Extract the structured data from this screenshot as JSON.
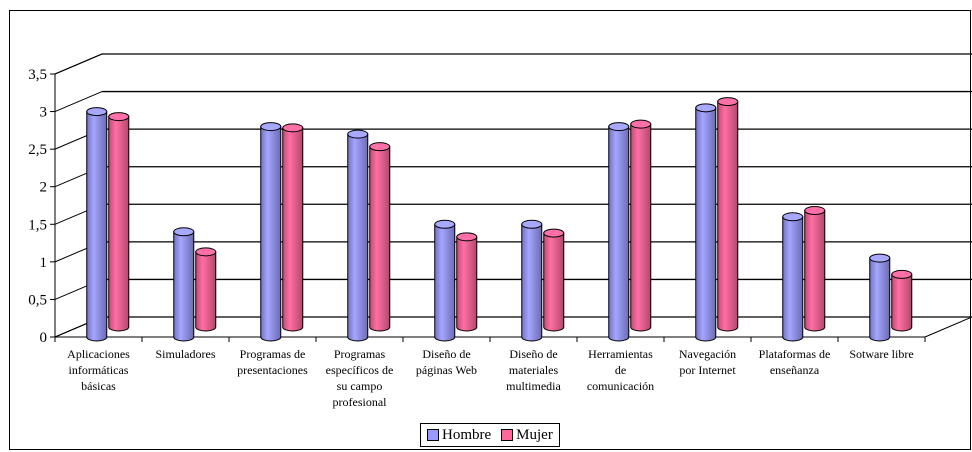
{
  "chart_data": {
    "type": "bar",
    "title": "",
    "xlabel": "",
    "ylabel": "",
    "ylim": [
      0,
      3.5
    ],
    "yticks": [
      "0",
      "0,5",
      "1",
      "1,5",
      "2",
      "2,5",
      "3",
      "3,5"
    ],
    "grid": true,
    "legend_position": "bottom",
    "categories": [
      [
        "Aplicaciones",
        "informáticas",
        "básicas"
      ],
      [
        "Simuladores"
      ],
      [
        "Programas de",
        "presentaciones"
      ],
      [
        "Programas",
        "específicos de",
        "su campo",
        "profesional"
      ],
      [
        "Diseño de",
        "páginas Web"
      ],
      [
        "Diseño de",
        "materiales",
        "multimedia"
      ],
      [
        "Herramientas",
        "de",
        "comunicación"
      ],
      [
        "Navegación",
        "por Internet"
      ],
      [
        "Plataformas de",
        "enseñanza"
      ],
      [
        "Sotware libre"
      ]
    ],
    "series": [
      {
        "name": "Hombre",
        "color": "#9999ff",
        "values": [
          3.0,
          1.4,
          2.8,
          2.7,
          1.5,
          1.5,
          2.8,
          3.05,
          1.6,
          1.05
        ]
      },
      {
        "name": "Mujer",
        "color": "#ff6699",
        "values": [
          2.8,
          1.0,
          2.65,
          2.4,
          1.2,
          1.25,
          2.7,
          3.0,
          1.55,
          0.7
        ]
      }
    ]
  },
  "legend": {
    "hombre_label": "Hombre",
    "mujer_label": "Mujer"
  }
}
